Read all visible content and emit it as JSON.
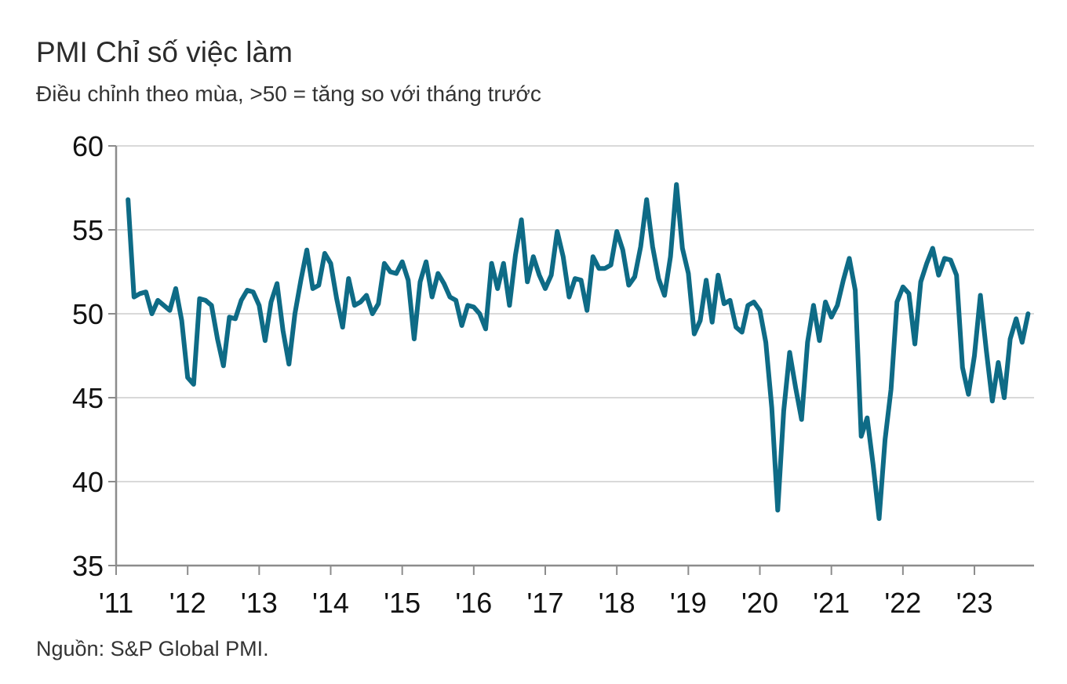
{
  "title": "PMI Chỉ số việc làm",
  "subtitle": "Điều chỉnh theo mùa, >50 = tăng so với tháng trước",
  "source": "Nguồn: S&P Global PMI.",
  "colors": {
    "line": "#0e6b86",
    "grid": "#d9d9d9",
    "axis": "#8c8c8c"
  },
  "chart_data": {
    "type": "line",
    "title": "PMI Chỉ số việc làm",
    "subtitle": "Điều chỉnh theo mùa, >50 = tăng so với tháng trước",
    "xlabel": "",
    "ylabel": "",
    "ylim": [
      35,
      60
    ],
    "xlim": [
      "2011-01",
      "2023-11"
    ],
    "y_ticks": [
      35,
      40,
      45,
      50,
      55,
      60
    ],
    "x_ticks": [
      {
        "label": "'11",
        "date": "2011-01"
      },
      {
        "label": "'12",
        "date": "2012-01"
      },
      {
        "label": "'13",
        "date": "2013-01"
      },
      {
        "label": "'14",
        "date": "2014-01"
      },
      {
        "label": "'15",
        "date": "2015-01"
      },
      {
        "label": "'16",
        "date": "2016-01"
      },
      {
        "label": "'17",
        "date": "2017-01"
      },
      {
        "label": "'18",
        "date": "2018-01"
      },
      {
        "label": "'19",
        "date": "2019-01"
      },
      {
        "label": "'20",
        "date": "2020-01"
      },
      {
        "label": "'21",
        "date": "2021-01"
      },
      {
        "label": "'22",
        "date": "2022-01"
      },
      {
        "label": "'23",
        "date": "2023-01"
      }
    ],
    "grid": true,
    "legend": "none",
    "series": [
      {
        "start": "2011-03",
        "values": [
          56.8,
          51.0,
          51.2,
          51.3,
          50.0,
          50.8,
          50.5,
          50.2,
          51.5,
          49.6,
          46.2,
          45.8,
          50.9,
          50.8,
          50.5,
          48.5,
          46.9,
          49.8,
          49.7,
          50.8,
          51.4,
          51.3,
          50.5,
          48.4,
          50.7,
          51.8,
          49.0,
          47.0,
          50.0,
          52.0,
          53.8,
          51.5,
          51.7,
          53.6,
          53.0,
          50.9,
          49.2,
          52.1,
          50.5,
          50.7,
          51.1,
          50.0,
          50.6,
          53.0,
          52.5,
          52.4,
          53.1,
          52.0,
          48.5,
          51.9,
          53.1,
          51.0,
          52.4,
          51.8,
          51.0,
          50.8,
          49.3,
          50.5,
          50.4,
          50.0,
          49.1,
          53.0,
          51.5,
          53.0,
          50.5,
          53.5,
          55.6,
          51.9,
          53.4,
          52.3,
          51.5,
          52.3,
          54.9,
          53.4,
          51.0,
          52.1,
          52.0,
          50.2,
          53.4,
          52.7,
          52.7,
          52.9,
          54.9,
          53.8,
          51.7,
          52.2,
          54.0,
          56.8,
          54.0,
          52.1,
          51.1,
          53.4,
          57.7,
          53.9,
          52.4,
          48.8,
          49.6,
          52.0,
          49.5,
          52.3,
          50.6,
          50.8,
          49.2,
          48.9,
          50.5,
          50.7,
          50.2,
          48.3,
          44.4,
          38.3,
          44.2,
          47.7,
          45.6,
          43.7,
          48.3,
          50.5,
          48.4,
          50.7,
          49.8,
          50.5,
          52.0,
          53.3,
          51.4,
          42.7,
          43.8,
          41.0,
          37.8,
          42.5,
          45.5,
          50.7,
          51.6,
          51.2,
          48.2,
          51.9,
          53.0,
          53.9,
          52.3,
          53.3,
          53.2,
          52.3,
          46.8,
          45.2,
          47.5,
          51.1,
          47.8,
          44.8,
          47.1,
          45.0,
          48.5,
          49.7,
          48.3,
          50.0
        ]
      }
    ]
  }
}
